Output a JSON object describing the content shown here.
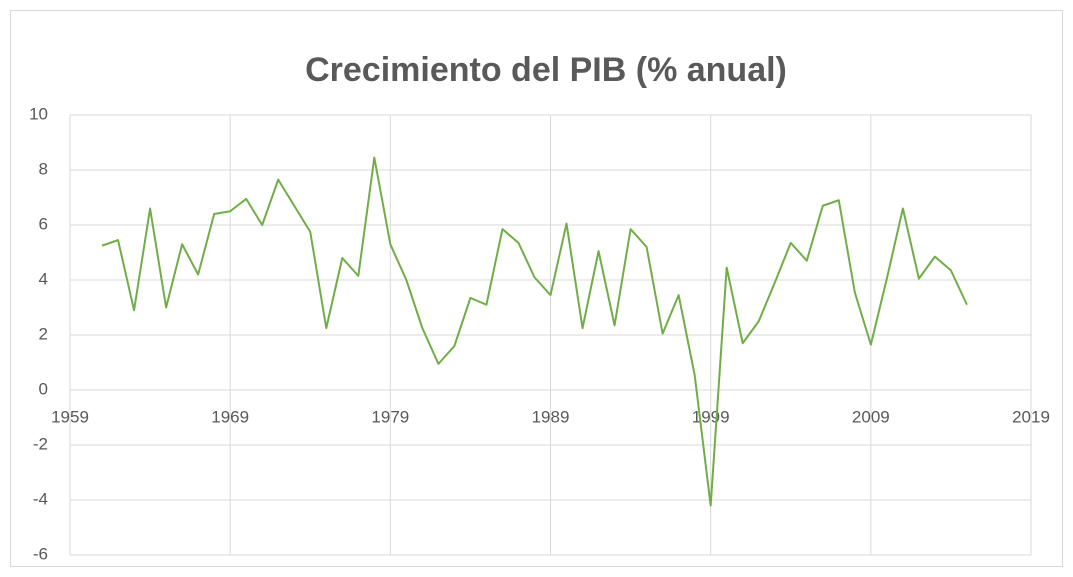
{
  "chart_data": {
    "type": "line",
    "title": "Crecimiento del PIB (% anual)",
    "x": [
      1961,
      1962,
      1963,
      1964,
      1965,
      1966,
      1967,
      1968,
      1969,
      1970,
      1971,
      1972,
      1973,
      1974,
      1975,
      1976,
      1977,
      1978,
      1979,
      1980,
      1981,
      1982,
      1983,
      1984,
      1985,
      1986,
      1987,
      1988,
      1989,
      1990,
      1991,
      1992,
      1993,
      1994,
      1995,
      1996,
      1997,
      1998,
      1999,
      2000,
      2001,
      2002,
      2003,
      2004,
      2005,
      2006,
      2007,
      2008,
      2009,
      2010,
      2011,
      2012,
      2013,
      2014,
      2015
    ],
    "series": [
      {
        "color": "#70ad47",
        "values": [
          5.25,
          5.45,
          2.9,
          6.6,
          3.0,
          5.3,
          4.2,
          6.4,
          6.5,
          6.95,
          6.0,
          7.65,
          6.7,
          5.75,
          2.25,
          4.8,
          4.15,
          8.45,
          5.3,
          4.0,
          2.25,
          0.95,
          1.6,
          3.35,
          3.1,
          5.85,
          5.35,
          4.1,
          3.45,
          6.05,
          2.25,
          5.05,
          2.35,
          5.85,
          5.2,
          2.05,
          3.45,
          0.55,
          -4.2,
          4.45,
          1.7,
          2.5,
          3.9,
          5.35,
          4.7,
          6.7,
          6.9,
          3.55,
          1.65,
          4.05,
          6.6,
          4.05,
          4.85,
          4.35,
          3.1
        ]
      }
    ],
    "xlim": [
      1959,
      2019
    ],
    "xticks": [
      1959,
      1969,
      1979,
      1989,
      1999,
      2009,
      2019
    ],
    "ylim": [
      -6,
      10
    ],
    "yticks": [
      -6,
      -4,
      -2,
      0,
      2,
      4,
      6,
      8,
      10
    ],
    "grid": true
  }
}
